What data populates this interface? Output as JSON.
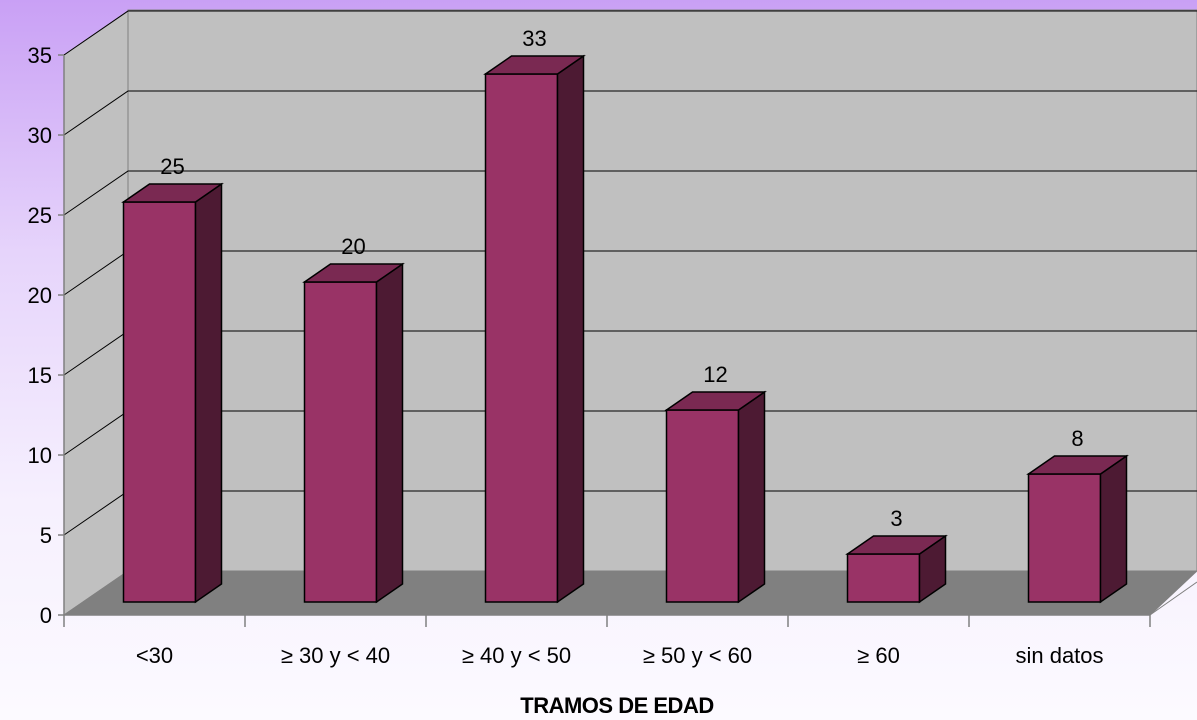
{
  "chart_data": {
    "type": "bar",
    "categories": [
      "<30",
      "≥ 30 y < 40",
      "≥ 40 y < 50",
      "≥ 50 y < 60",
      "≥ 60",
      "sin datos"
    ],
    "values": [
      25,
      20,
      33,
      12,
      3,
      8
    ],
    "title": "",
    "xlabel": "TRAMOS DE EDAD",
    "ylabel": "",
    "ylim": [
      0,
      35
    ],
    "yticks": [
      0,
      5,
      10,
      15,
      20,
      25,
      30,
      35
    ],
    "grid": true,
    "legend": "none",
    "style": "3d-column",
    "colors": {
      "bar_front": "#993366",
      "bar_side": "#4d1a33",
      "bar_top": "#7a2952",
      "wall": "#c0c0c0",
      "floor": "#808080"
    }
  }
}
